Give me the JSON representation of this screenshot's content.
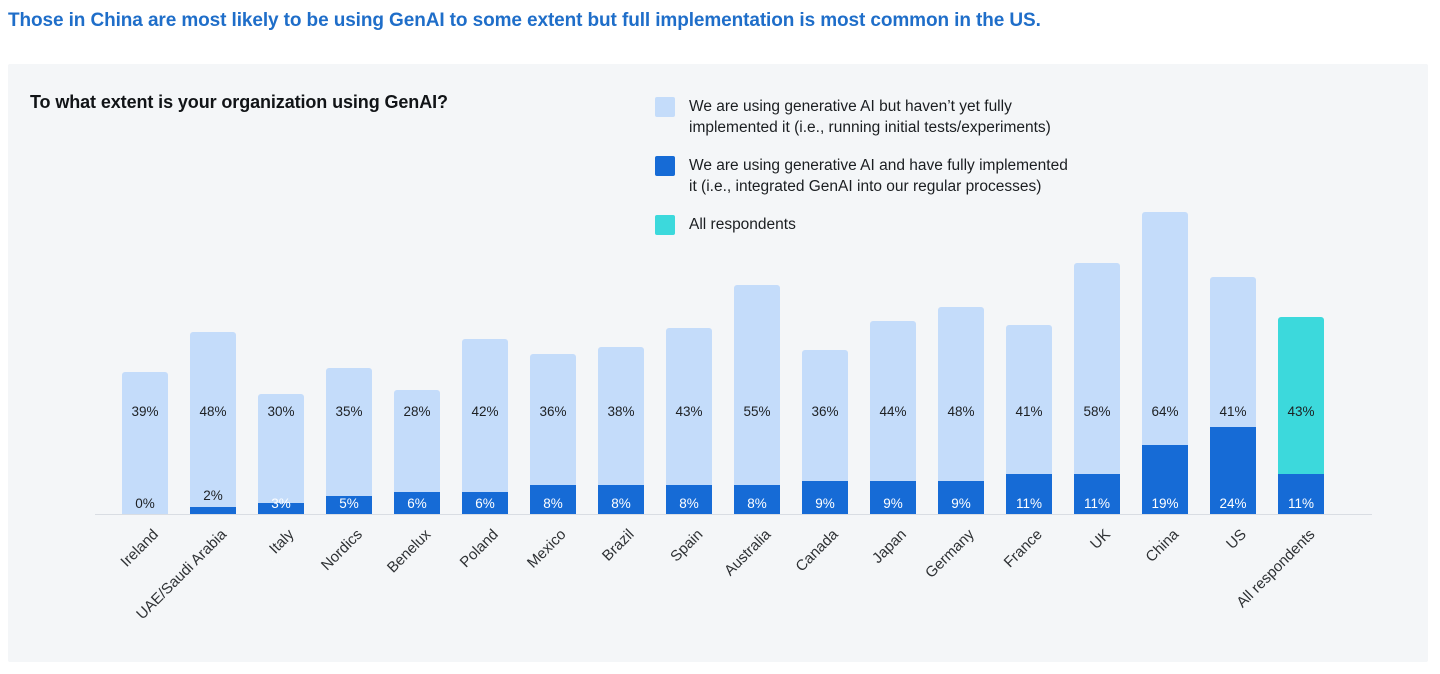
{
  "page_title": "Those in China are most likely to be using GenAI to some extent but full implementation is most common in the US.",
  "panel": {
    "chart_title": "To what extent is your organization using GenAI?"
  },
  "legend": {
    "position": "top-right",
    "items": [
      {
        "label": "We are using generative AI but haven’t yet fully\nimplemented it (i.e., running initial tests/experiments)",
        "color": "#c4dcfa"
      },
      {
        "label": "We are using generative AI and have fully implemented\nit (i.e., integrated GenAI into our regular processes)",
        "color": "#166bd6"
      },
      {
        "label": "All respondents",
        "color": "#3cd9dc"
      }
    ]
  },
  "colors": {
    "page_title_blue": "#1f6ec9",
    "panel_background": "#f4f6f8",
    "partial_segment": "#c4dcfa",
    "full_segment": "#166bd6",
    "all_respondents_segment": "#3cd9dc",
    "axis_line": "#d9dde3"
  },
  "chart_data": {
    "type": "bar",
    "stacked": true,
    "title": "To what extent is your organization using GenAI?",
    "grid": false,
    "legend_position": "top-right",
    "value_suffix": "%",
    "ylim": [
      0,
      90
    ],
    "categories": [
      "Ireland",
      "UAE/Saudi Arabia",
      "Italy",
      "Nordics",
      "Benelux",
      "Poland",
      "Mexico",
      "Brazil",
      "Spain",
      "Australia",
      "Canada",
      "Japan",
      "Germany",
      "France",
      "UK",
      "China",
      "US",
      "All respondents"
    ],
    "series": [
      {
        "name": "We are using generative AI but haven’t yet fully implemented it (i.e., running initial tests/experiments)",
        "color": "#c4dcfa",
        "values": [
          39,
          48,
          30,
          35,
          28,
          42,
          36,
          38,
          43,
          55,
          36,
          44,
          48,
          41,
          58,
          64,
          41,
          43
        ]
      },
      {
        "name": "We are using generative AI and have fully implemented it (i.e., integrated GenAI into our regular processes)",
        "color": "#166bd6",
        "values": [
          0,
          2,
          3,
          5,
          6,
          6,
          8,
          8,
          8,
          8,
          9,
          9,
          9,
          11,
          11,
          19,
          24,
          11
        ]
      }
    ],
    "highlight_category": "All respondents",
    "highlight_color": "#3cd9dc"
  }
}
